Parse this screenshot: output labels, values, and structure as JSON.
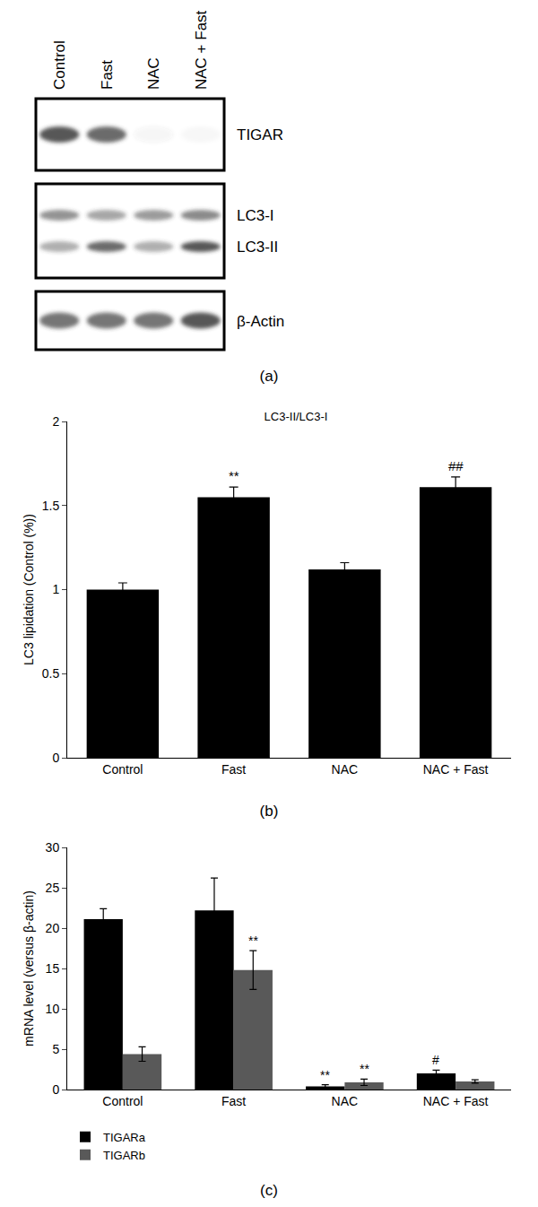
{
  "blot": {
    "panel": "(a)",
    "lanes": [
      "Control",
      "Fast",
      "NAC",
      "NAC + Fast"
    ],
    "boxes": [
      {
        "bands": [
          {
            "label": "TIGAR",
            "intensity": [
              0.85,
              0.75,
              0.05,
              0.03
            ]
          }
        ]
      },
      {
        "bands": [
          {
            "label": "LC3-I",
            "intensity": [
              0.55,
              0.45,
              0.5,
              0.6
            ]
          },
          {
            "label": "LC3-II",
            "intensity": [
              0.4,
              0.75,
              0.4,
              0.85
            ]
          }
        ]
      },
      {
        "bands": [
          {
            "label": "β-Actin",
            "intensity": [
              0.7,
              0.7,
              0.7,
              0.85
            ]
          }
        ]
      }
    ]
  },
  "chart_data": [
    {
      "type": "bar",
      "panel": "(b)",
      "title": "LC3-II/LC3-I",
      "categories": [
        "Control",
        "Fast",
        "NAC",
        "NAC + Fast"
      ],
      "values": [
        1.0,
        1.55,
        1.12,
        1.61
      ],
      "errors": [
        0.04,
        0.06,
        0.04,
        0.06
      ],
      "color": "#000000",
      "y_label": "LC3 lipidation (Control (%))",
      "ylim": [
        0,
        2
      ],
      "yticks": [
        0,
        0.5,
        1,
        1.5,
        2
      ],
      "annotations": [
        {
          "category": "Fast",
          "text": "**"
        },
        {
          "category": "NAC + Fast",
          "text": "##"
        }
      ]
    },
    {
      "type": "bar",
      "panel": "(c)",
      "categories": [
        "Control",
        "Fast",
        "NAC",
        "NAC + Fast"
      ],
      "series": [
        {
          "name": "TIGARa",
          "color": "#000000",
          "values": [
            21.1,
            22.2,
            0.4,
            2.0
          ],
          "errors": [
            1.3,
            4.0,
            0.2,
            0.4
          ]
        },
        {
          "name": "TIGARb",
          "color": "#595959",
          "values": [
            4.4,
            14.8,
            0.9,
            1.0
          ],
          "errors": [
            0.9,
            2.4,
            0.4,
            0.2
          ]
        }
      ],
      "y_label": "mRNA level (versus β-actin)",
      "ylim": [
        0,
        30
      ],
      "yticks": [
        0,
        5,
        10,
        15,
        20,
        25,
        30
      ],
      "legend": "bottom left",
      "annotations": [
        {
          "category": "Fast",
          "series": "TIGARb",
          "text": "**"
        },
        {
          "category": "NAC",
          "series": "TIGARa",
          "text": "**"
        },
        {
          "category": "NAC",
          "series": "TIGARb",
          "text": "**"
        },
        {
          "category": "NAC + Fast",
          "series": "TIGARa",
          "text": "#"
        }
      ]
    }
  ]
}
